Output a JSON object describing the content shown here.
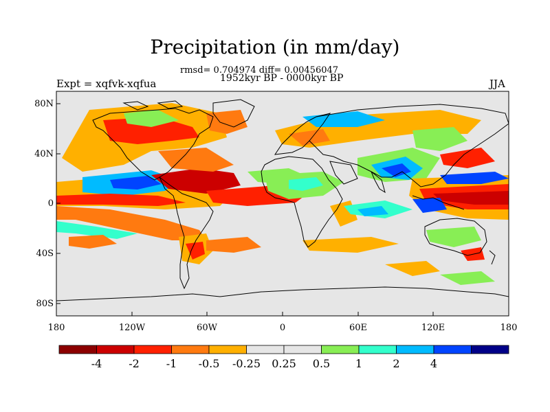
{
  "title": "Precipitation (in mm/day)",
  "stats_text": "rmsd= 0.704974 diff= 0.00456047",
  "period_text": "1952kyr BP - 0000kyr BP",
  "experiment_text": "Expt = xqfvk-xqfua",
  "season_text": "JJA",
  "map": {
    "lat_ticks": [
      "80N",
      "40N",
      "0",
      "40S",
      "80S"
    ],
    "lon_ticks": [
      "180",
      "120W",
      "60W",
      "0",
      "60E",
      "120E",
      "180"
    ],
    "background_color": "#e6e6e6"
  },
  "colorbar": {
    "colors": [
      "#8c0000",
      "#cc0000",
      "#ff2000",
      "#ff7a10",
      "#ffb000",
      "#e6e6e6",
      "#e6e6e6",
      "#88ee55",
      "#33ffcc",
      "#00bbff",
      "#0044ff",
      "#000088"
    ],
    "labels": [
      "-4",
      "-2",
      "-1",
      "-0.5",
      "-0.25",
      "0.25",
      "0.5",
      "1",
      "2",
      "4"
    ]
  },
  "regions": [
    {
      "name": "n-atlantic-red",
      "color": "#ff2000"
    },
    {
      "name": "n-atlantic-orange",
      "color": "#ffb000"
    },
    {
      "name": "east-pacific-red",
      "color": "#ff2000"
    },
    {
      "name": "east-pacific-blue",
      "color": "#0044ff"
    },
    {
      "name": "south-pacific-orange",
      "color": "#ffb000"
    },
    {
      "name": "indian-blue",
      "color": "#00bbff"
    },
    {
      "name": "west-pacific-red",
      "color": "#cc0000"
    },
    {
      "name": "africa-green",
      "color": "#88ee55"
    },
    {
      "name": "eurasia-orange",
      "color": "#ffb000"
    },
    {
      "name": "southern-ocean-orange",
      "color": "#ff7a10"
    }
  ]
}
